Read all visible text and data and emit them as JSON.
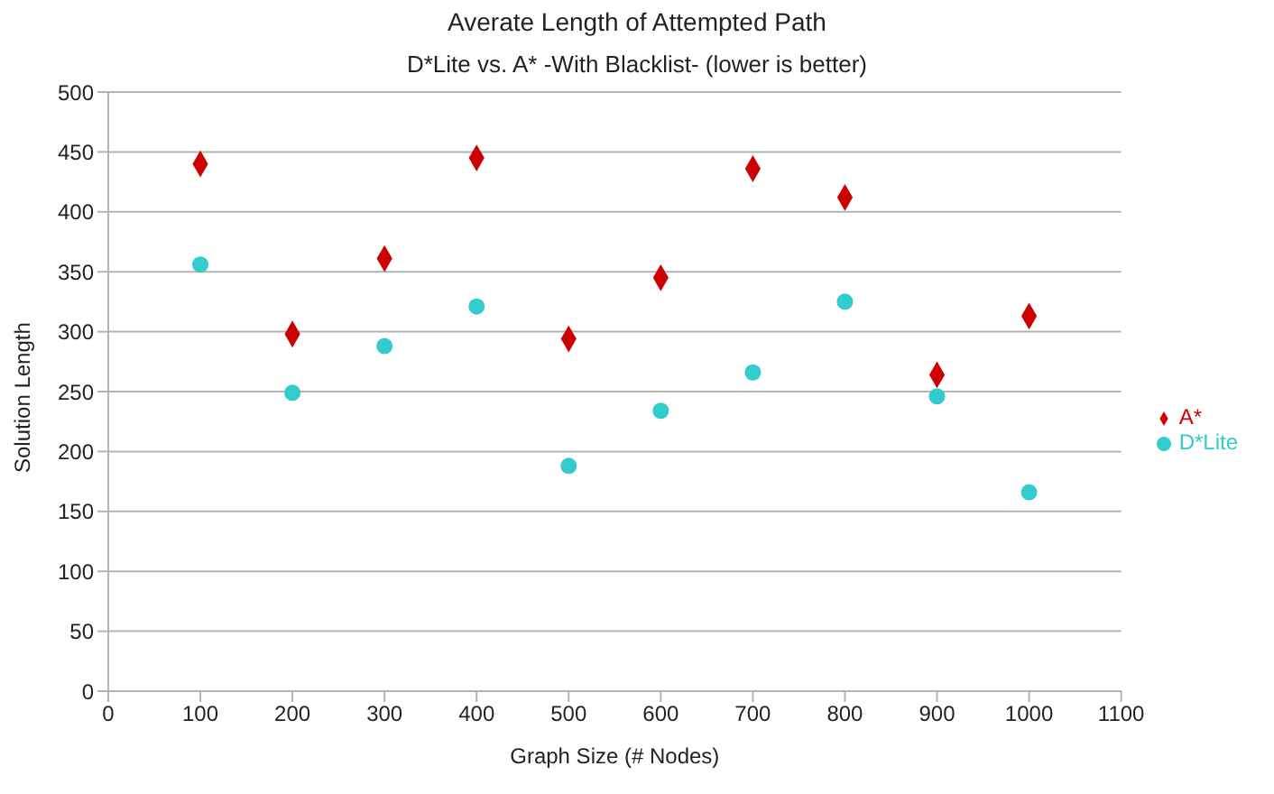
{
  "chart_data": {
    "type": "scatter",
    "title": "Averate Length of Attempted Path",
    "subtitle": "D*Lite vs. A* -With Blacklist- (lower is better)",
    "xlabel": "Graph Size (# Nodes)",
    "ylabel": "Solution Length",
    "x": [
      100,
      200,
      300,
      400,
      500,
      600,
      700,
      800,
      900,
      1000
    ],
    "series": [
      {
        "name": "D*Lite",
        "color": "#33cccc",
        "marker": "circle",
        "values": [
          356,
          249,
          288,
          321,
          188,
          234,
          266,
          325,
          246,
          166
        ]
      },
      {
        "name": "A*",
        "color": "#cc0000",
        "marker": "diamond",
        "values": [
          440,
          298,
          361,
          445,
          294,
          345,
          436,
          412,
          264,
          313
        ]
      }
    ],
    "xlim": [
      0,
      1100
    ],
    "xticks": [
      0,
      100,
      200,
      300,
      400,
      500,
      600,
      700,
      800,
      900,
      1000,
      1100
    ],
    "ylim": [
      0,
      500
    ],
    "yticks": [
      0,
      50,
      100,
      150,
      200,
      250,
      300,
      350,
      400,
      450,
      500
    ],
    "grid": "y",
    "legend": "right"
  }
}
